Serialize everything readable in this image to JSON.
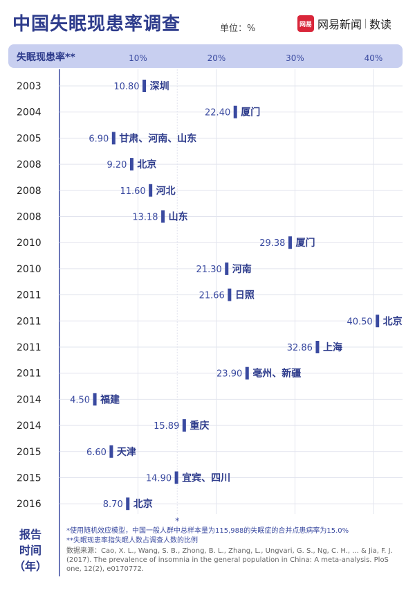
{
  "title": "中国失眠现患率调查",
  "unit": "单位：%",
  "logo": {
    "badge": "网易",
    "brand": "网易新闻",
    "channel": "数读"
  },
  "axis_header": "失眠现患率**",
  "ylabel_lines": [
    "报告",
    "时间",
    "（年）"
  ],
  "notes": {
    "note1": "*使用随机效应模型，中国一般人群中总样本量为115,988的失眠症的合并点患病率为15.0%",
    "note2": "**失眠现患率指失眠人数占调查人数的比例",
    "source": "数据来源：Cao, X. L., Wang, S. B., Zhong, B. L., Zhang, L., Ungvari, G. S., Ng, C. H., ... & Jia, F. J. (2017). The prevalence of insomnia in the general population in China: A meta-analysis. PloS one, 12(2), e0170772."
  },
  "chart_data": {
    "type": "scatter",
    "xlabel": "失眠现患率**",
    "ylabel": "报告时间（年）",
    "xlim": [
      0,
      42
    ],
    "x_ticks": [
      "10%",
      "20%",
      "30%",
      "40%"
    ],
    "x_tick_values": [
      10,
      20,
      30,
      40
    ],
    "reference_line": {
      "value": 15.0,
      "marker": "*"
    },
    "grid": true,
    "points": [
      {
        "year": "2003",
        "value": 10.8,
        "label": "10.80",
        "place": "深圳"
      },
      {
        "year": "2004",
        "value": 22.4,
        "label": "22.40",
        "place": "厦门"
      },
      {
        "year": "2005",
        "value": 6.9,
        "label": "6.90",
        "place": "甘肃、河南、山东"
      },
      {
        "year": "2008",
        "value": 9.2,
        "label": "9.20",
        "place": "北京"
      },
      {
        "year": "2008",
        "value": 11.6,
        "label": "11.60",
        "place": "河北"
      },
      {
        "year": "2008",
        "value": 13.18,
        "label": "13.18",
        "place": "山东"
      },
      {
        "year": "2010",
        "value": 29.38,
        "label": "29.38",
        "place": "厦门"
      },
      {
        "year": "2010",
        "value": 21.3,
        "label": "21.30",
        "place": "河南"
      },
      {
        "year": "2011",
        "value": 21.66,
        "label": "21.66",
        "place": "日照"
      },
      {
        "year": "2011",
        "value": 40.5,
        "label": "40.50",
        "place": "北京"
      },
      {
        "year": "2011",
        "value": 32.86,
        "label": "32.86",
        "place": "上海"
      },
      {
        "year": "2011",
        "value": 23.9,
        "label": "23.90",
        "place": "亳州、新疆"
      },
      {
        "year": "2014",
        "value": 4.5,
        "label": "4.50",
        "place": "福建"
      },
      {
        "year": "2014",
        "value": 15.89,
        "label": "15.89",
        "place": "重庆"
      },
      {
        "year": "2015",
        "value": 6.6,
        "label": "6.60",
        "place": "天津"
      },
      {
        "year": "2015",
        "value": 14.9,
        "label": "14.90",
        "place": "宜宾、四川"
      },
      {
        "year": "2016",
        "value": 8.7,
        "label": "8.70",
        "place": "北京"
      }
    ],
    "colors": {
      "accent": "#3a4aa0",
      "band": "#c8cff0",
      "grid": "#e2e4ee"
    }
  }
}
